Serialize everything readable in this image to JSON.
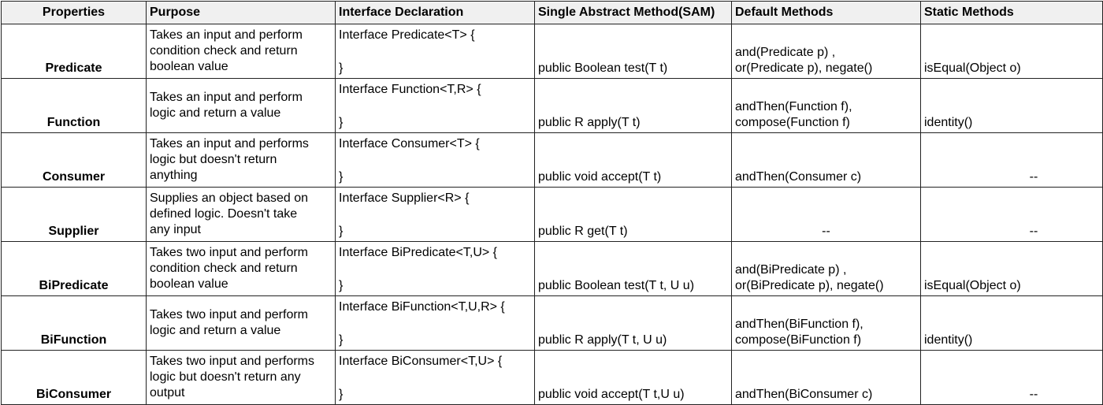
{
  "headers": {
    "properties": "Properties",
    "purpose": "Purpose",
    "declaration": "Interface Declaration",
    "sam": "Single Abstract Method(SAM)",
    "default": "Default Methods",
    "static": "Static Methods"
  },
  "rows": [
    {
      "property": "Predicate",
      "purpose": [
        "Takes an input and perform",
        "condition check and return",
        "boolean value"
      ],
      "declaration_open": "Interface Predicate<T> {",
      "declaration_close": "}",
      "sam": "public Boolean test(T t)",
      "default": [
        "and(Predicate p) ,",
        "or(Predicate p), negate()"
      ],
      "static": "isEqual(Object o)"
    },
    {
      "property": "Function",
      "purpose": [
        "Takes an input and perform",
        "logic and return a value"
      ],
      "declaration_open": "Interface Function<T,R> {",
      "declaration_close": "}",
      "sam": "public R apply(T t)",
      "default": [
        "andThen(Function f),",
        "compose(Function f)"
      ],
      "static": "identity()"
    },
    {
      "property": "Consumer",
      "purpose": [
        "Takes an input and performs",
        "logic but doesn't return",
        "anything"
      ],
      "declaration_open": "Interface Consumer<T> {",
      "declaration_close": "}",
      "sam": "public void accept(T t)",
      "default": [
        "andThen(Consumer c)"
      ],
      "static": "--"
    },
    {
      "property": "Supplier",
      "purpose": [
        "Supplies an object based on",
        "defined logic. Doesn't take",
        "any input"
      ],
      "declaration_open": "Interface Supplier<R> {",
      "declaration_close": "}",
      "sam": "public R get(T t)",
      "default": [
        "--"
      ],
      "static": "--"
    },
    {
      "property": "BiPredicate",
      "purpose": [
        "Takes two input and perform",
        "condition check and return",
        "boolean value"
      ],
      "declaration_open": "Interface BiPredicate<T,U> {",
      "declaration_close": "}",
      "sam": "public Boolean test(T t, U u)",
      "default": [
        "and(BiPredicate p) ,",
        "or(BiPredicate p), negate()"
      ],
      "static": "isEqual(Object o)"
    },
    {
      "property": "BiFunction",
      "purpose": [
        "Takes two input and perform",
        "logic and return a value"
      ],
      "declaration_open": "Interface BiFunction<T,U,R> {",
      "declaration_close": "}",
      "sam": "public R apply(T t, U u)",
      "default": [
        "andThen(BiFunction f),",
        "compose(BiFunction f)"
      ],
      "static": "identity()"
    },
    {
      "property": "BiConsumer",
      "purpose": [
        "Takes two input and performs",
        "logic but doesn't return any",
        "output"
      ],
      "declaration_open": "Interface BiConsumer<T,U> {",
      "declaration_close": "}",
      "sam": "public void accept(T t,U u)",
      "default": [
        "andThen(BiConsumer c)"
      ],
      "static": "--"
    }
  ]
}
